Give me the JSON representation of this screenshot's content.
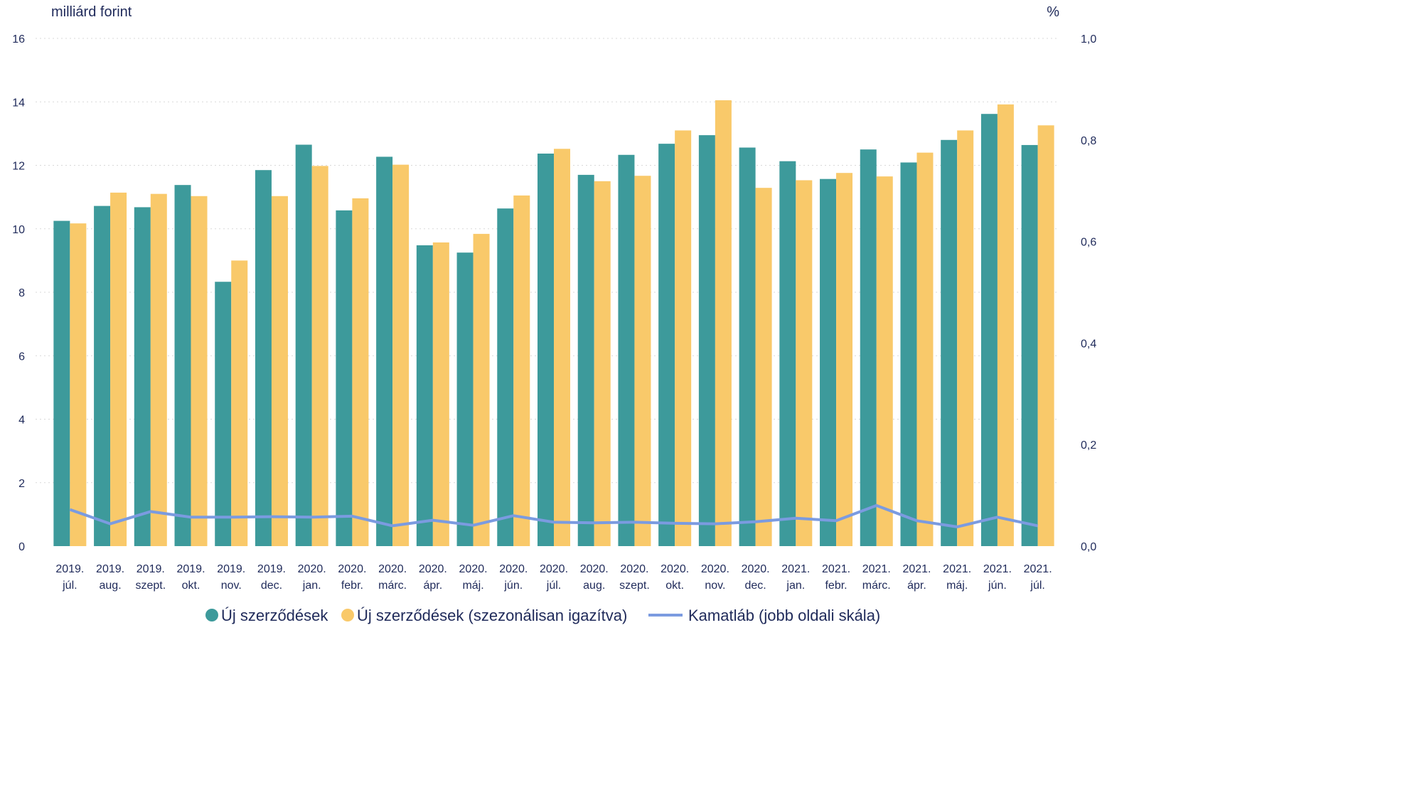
{
  "chart_data": {
    "type": "bar",
    "y_left_unit": "milliárd forint",
    "y_right_unit": "%",
    "y_left_lim": [
      0,
      16
    ],
    "y_left_ticks": [
      "0",
      "2",
      "4",
      "6",
      "8",
      "10",
      "12",
      "14",
      "16"
    ],
    "y_right_lim": [
      0,
      1.0
    ],
    "y_right_ticks": [
      "0,0",
      "0,2",
      "0,4",
      "0,6",
      "0,8",
      "1,0"
    ],
    "grid": true,
    "legend_position": "bottom",
    "categories": [
      {
        "year": "2019.",
        "month": "júl."
      },
      {
        "year": "2019.",
        "month": "aug."
      },
      {
        "year": "2019.",
        "month": "szept."
      },
      {
        "year": "2019.",
        "month": "okt."
      },
      {
        "year": "2019.",
        "month": "nov."
      },
      {
        "year": "2019.",
        "month": "dec."
      },
      {
        "year": "2020.",
        "month": "jan."
      },
      {
        "year": "2020.",
        "month": "febr."
      },
      {
        "year": "2020.",
        "month": "márc."
      },
      {
        "year": "2020.",
        "month": "ápr."
      },
      {
        "year": "2020.",
        "month": "máj."
      },
      {
        "year": "2020.",
        "month": "jún."
      },
      {
        "year": "2020.",
        "month": "júl."
      },
      {
        "year": "2020.",
        "month": "aug."
      },
      {
        "year": "2020.",
        "month": "szept."
      },
      {
        "year": "2020.",
        "month": "okt."
      },
      {
        "year": "2020.",
        "month": "nov."
      },
      {
        "year": "2020.",
        "month": "dec."
      },
      {
        "year": "2021.",
        "month": "jan."
      },
      {
        "year": "2021.",
        "month": "febr."
      },
      {
        "year": "2021.",
        "month": "márc."
      },
      {
        "year": "2021.",
        "month": "ápr."
      },
      {
        "year": "2021.",
        "month": "máj."
      },
      {
        "year": "2021.",
        "month": "jún."
      },
      {
        "year": "2021.",
        "month": "júl."
      }
    ],
    "series": [
      {
        "name": "Új szerződések",
        "type": "bar",
        "axis": "left",
        "color": "#3d9a9b",
        "values": [
          10.25,
          10.72,
          10.68,
          11.38,
          8.33,
          11.85,
          12.65,
          10.58,
          12.27,
          9.48,
          9.25,
          10.64,
          12.37,
          11.7,
          12.33,
          12.68,
          12.95,
          12.56,
          12.13,
          11.57,
          12.5,
          12.09,
          12.8,
          13.62,
          12.64
        ]
      },
      {
        "name": "Új szerződések (szezonálisan igazítva)",
        "type": "bar",
        "axis": "left",
        "color": "#f9c96a",
        "values": [
          10.17,
          11.14,
          11.1,
          11.03,
          9.0,
          11.03,
          11.98,
          10.96,
          12.02,
          9.57,
          9.84,
          11.05,
          12.52,
          11.5,
          11.67,
          13.1,
          14.05,
          11.29,
          11.53,
          11.76,
          11.65,
          12.4,
          13.1,
          13.92,
          13.26
        ]
      },
      {
        "name": "Kamatláb (jobb oldali skála)",
        "type": "line",
        "axis": "right",
        "color": "#7b9be0",
        "values": [
          0.072,
          0.044,
          0.068,
          0.057,
          0.057,
          0.058,
          0.057,
          0.059,
          0.04,
          0.051,
          0.041,
          0.06,
          0.047,
          0.046,
          0.047,
          0.045,
          0.044,
          0.048,
          0.055,
          0.05,
          0.08,
          0.05,
          0.038,
          0.057,
          0.04
        ]
      }
    ]
  }
}
